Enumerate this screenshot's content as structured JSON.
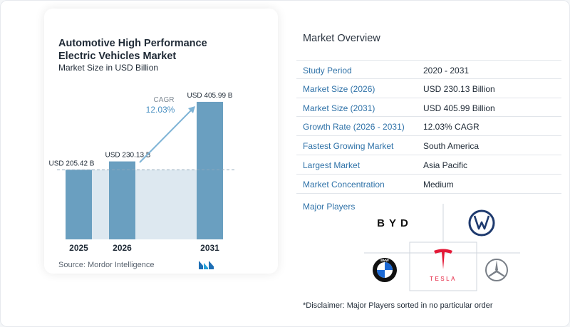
{
  "chart_data": {
    "type": "bar",
    "title": "Automotive High Performance Electric Vehicles Market",
    "subtitle": "Market Size in USD Billion",
    "categories": [
      "2025",
      "2026",
      "2031"
    ],
    "values": [
      205.42,
      230.13,
      405.99
    ],
    "value_labels": [
      "USD 205.42 B",
      "USD 230.13 B",
      "USD 405.99 B"
    ],
    "cagr_label": "CAGR",
    "cagr_value": "12.03%",
    "bar_color": "#6a9fc0",
    "baseline_band_color": "#dde8f0",
    "arrow_color": "#7fb4d6",
    "xlabel": "",
    "ylabel": ""
  },
  "source": "Source:  Mordor Intelligence",
  "overview": {
    "title": "Market Overview",
    "rows": [
      {
        "label": "Study Period",
        "value": "2020 - 2031"
      },
      {
        "label": "Market Size (2026)",
        "value": "USD 230.13 Billion"
      },
      {
        "label": "Market Size (2031)",
        "value": "USD 405.99 Billion"
      },
      {
        "label": "Growth Rate (2026 - 2031)",
        "value": "12.03% CAGR"
      },
      {
        "label": "Fastest Growing Market",
        "value": "South America"
      },
      {
        "label": "Largest Market",
        "value": "Asia Pacific"
      },
      {
        "label": "Market Concentration",
        "value": "Medium"
      }
    ]
  },
  "players": {
    "label": "Major Players",
    "logos": [
      "BYD",
      "Volkswagen",
      "BMW",
      "Tesla",
      "Mercedes-Benz"
    ],
    "byd_text": "BYD",
    "tesla_text": "TESLA",
    "bmw_text": "BMW"
  },
  "disclaimer": "*Disclaimer: Major Players sorted in no particular order",
  "colors": {
    "accent": "#2f72a8",
    "tesla_red": "#e31937",
    "vw_blue": "#1e3a6e"
  }
}
